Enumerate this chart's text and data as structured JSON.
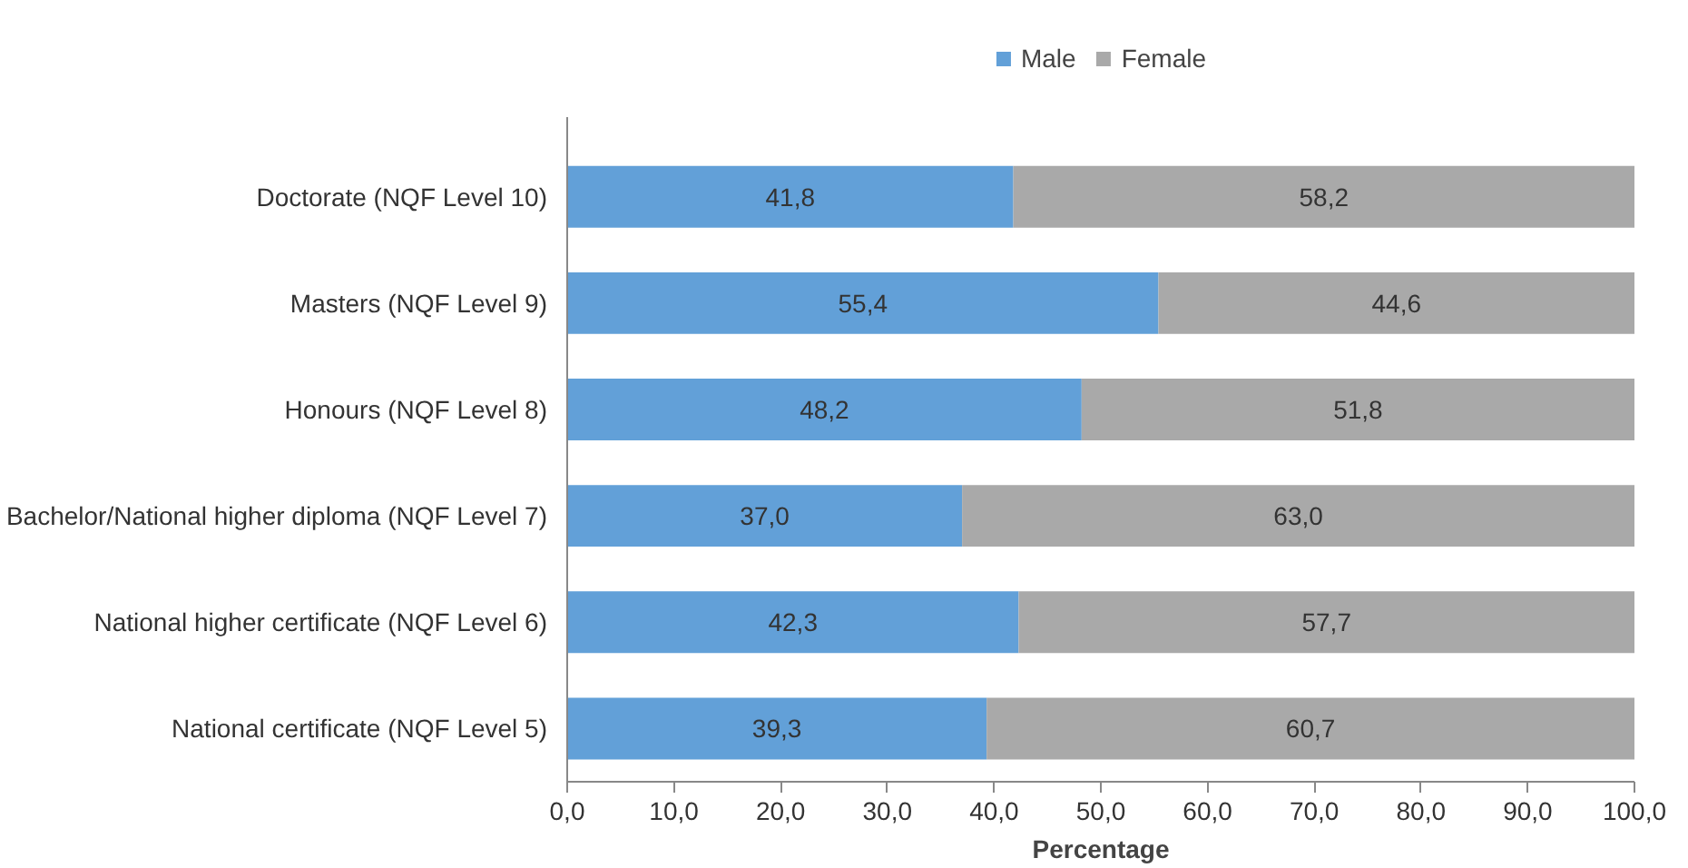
{
  "chart_data": {
    "type": "bar",
    "orientation": "horizontal",
    "stacked": true,
    "xlabel": "Percentage",
    "categories": [
      "Doctorate (NQF Level 10)",
      "Masters (NQF Level 9)",
      "Honours (NQF Level 8)",
      "Bachelor/National higher diploma (NQF Level 7)",
      "National higher certificate (NQF Level 6)",
      "National certificate (NQF Level 5)"
    ],
    "series": [
      {
        "name": "Male",
        "color": "#62a0d8",
        "values": [
          41.8,
          55.4,
          48.2,
          37.0,
          42.3,
          39.3
        ],
        "value_labels": [
          "41,8",
          "55,4",
          "48,2",
          "37,0",
          "42,3",
          "39,3"
        ]
      },
      {
        "name": "Female",
        "color": "#a9a9a9",
        "values": [
          58.2,
          44.6,
          51.8,
          63.0,
          57.7,
          60.7
        ],
        "value_labels": [
          "58,2",
          "44,6",
          "51,8",
          "63,0",
          "57,7",
          "60,7"
        ]
      }
    ],
    "xlim": [
      0,
      100
    ],
    "xticks": [
      {
        "value": 0,
        "label": "0,0"
      },
      {
        "value": 10,
        "label": "10,0"
      },
      {
        "value": 20,
        "label": "20,0"
      },
      {
        "value": 30,
        "label": "30,0"
      },
      {
        "value": 40,
        "label": "40,0"
      },
      {
        "value": 50,
        "label": "50,0"
      },
      {
        "value": 60,
        "label": "60,0"
      },
      {
        "value": 70,
        "label": "70,0"
      },
      {
        "value": 80,
        "label": "80,0"
      },
      {
        "value": 90,
        "label": "90,0"
      },
      {
        "value": 100,
        "label": "100,0"
      }
    ],
    "grid": false,
    "legend": "top"
  }
}
